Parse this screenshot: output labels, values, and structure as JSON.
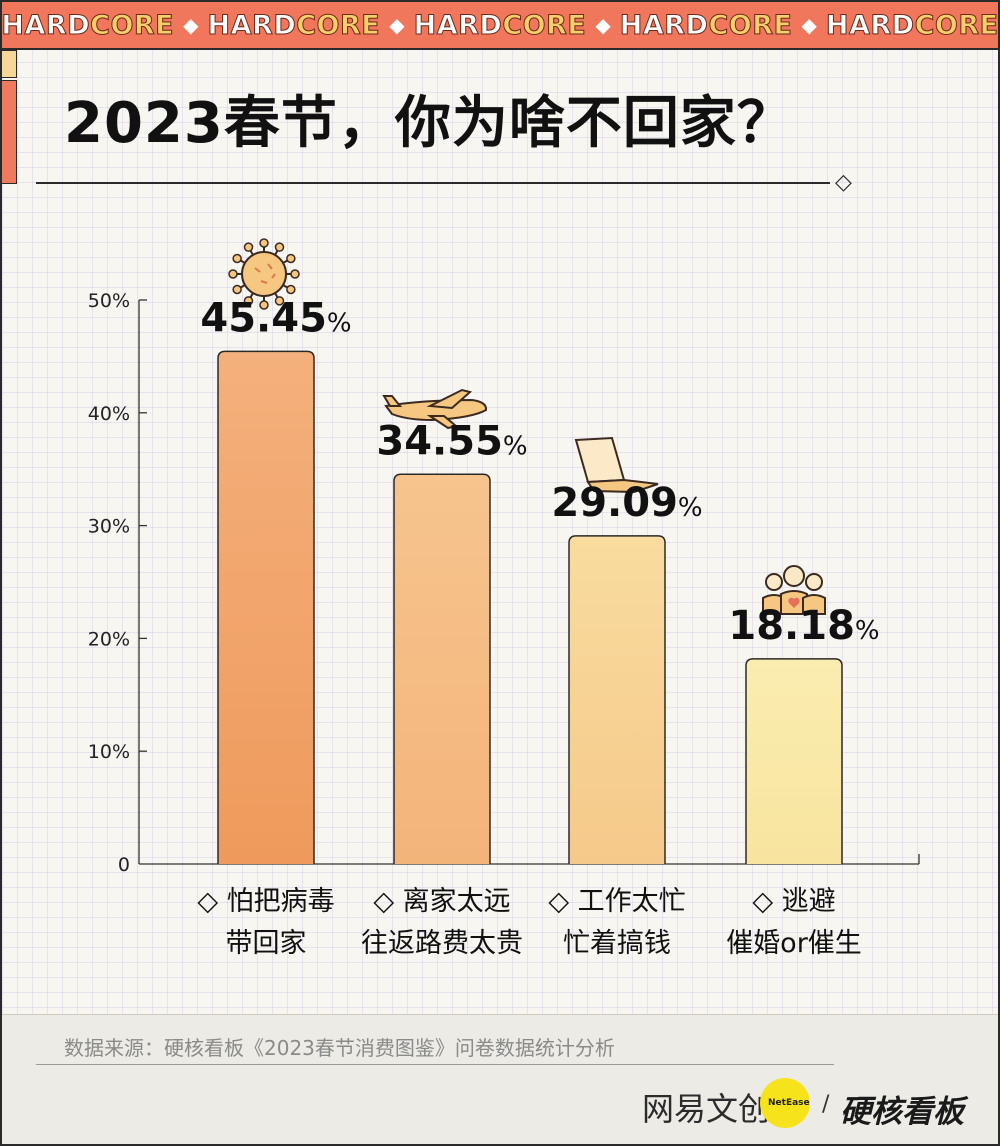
{
  "banner": {
    "words": [
      "HARDCORE",
      "HARDCORE",
      "HARDCORE",
      "HARDCORE",
      "HARDCORE"
    ],
    "separator": "◆",
    "colors": {
      "background": "#f0765c",
      "text_white": "#ffffff",
      "text_yellow": "#f7cf6a"
    }
  },
  "title": "2023春节，你为啥不回家？",
  "title_ornament": "◇",
  "chart_data": {
    "type": "bar",
    "title": "2023春节，你为啥不回家？",
    "xlabel": "",
    "ylabel": "",
    "ylim": [
      0,
      50
    ],
    "yticks": [
      "0",
      "10%",
      "20%",
      "30%",
      "40%",
      "50%"
    ],
    "grid": false,
    "categories": [
      "怕把病毒带回家",
      "离家太远往返路费太贵",
      "工作太忙忙着搞钱",
      "逃避催婚or催生"
    ],
    "category_lines": [
      [
        "◇ 怕把病毒",
        "带回家"
      ],
      [
        "◇ 离家太远",
        "往返路费太贵"
      ],
      [
        "◇ 工作太忙",
        "忙着搞钱"
      ],
      [
        "◇ 逃避",
        "催婚or催生"
      ]
    ],
    "values": [
      45.45,
      34.55,
      29.09,
      18.18
    ],
    "value_labels": [
      "45.45",
      "34.55",
      "29.09",
      "18.18"
    ],
    "value_suffix": "%",
    "icons": [
      "virus-icon",
      "airplane-icon",
      "laptop-icon",
      "family-icon"
    ],
    "bar_colors": [
      [
        "#f4b07c",
        "#ef9a5c"
      ],
      [
        "#f7c48e",
        "#f3b47a"
      ],
      [
        "#f9dc9f",
        "#f5c98a"
      ],
      [
        "#faedb0",
        "#f8e49f"
      ]
    ]
  },
  "source": "数据来源：硬核看板《2023春节消费图鉴》问卷数据统计分析",
  "logos": {
    "netease": "网易文创",
    "netease_en": "NetEase",
    "slash": "/",
    "hardcore": "硬核看板",
    "dot_color": "#f6e31c"
  }
}
